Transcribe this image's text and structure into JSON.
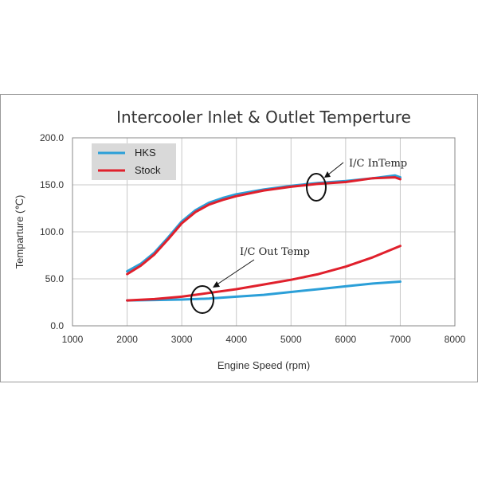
{
  "chart_data": {
    "type": "line",
    "title": "Intercooler Inlet & Outlet Temperture",
    "xlabel": "Engine Speed (rpm)",
    "ylabel": "Temparture (℃)",
    "xlim": [
      1000,
      8000
    ],
    "ylim": [
      0,
      200
    ],
    "x_ticks": [
      "1000",
      "2000",
      "3000",
      "4000",
      "5000",
      "6000",
      "7000",
      "8000"
    ],
    "y_ticks": [
      "0.0",
      "50.0",
      "100.0",
      "150.0",
      "200.0"
    ],
    "grid": true,
    "legend_position": "top-left",
    "series": [
      {
        "name": "HKS",
        "group": "inlet",
        "color": "#2b9fd8",
        "x": [
          2000,
          2250,
          2500,
          2750,
          3000,
          3250,
          3500,
          3750,
          4000,
          4500,
          5000,
          5500,
          6000,
          6500,
          6900,
          7000
        ],
        "y": [
          58,
          66,
          78,
          94,
          111,
          123,
          131,
          136,
          140,
          145,
          149,
          152,
          154,
          157,
          160,
          158
        ]
      },
      {
        "name": "Stock",
        "group": "inlet",
        "color": "#e0202c",
        "x": [
          2000,
          2250,
          2500,
          2750,
          3000,
          3250,
          3500,
          3750,
          4000,
          4500,
          5000,
          5500,
          6000,
          6500,
          6900,
          7000
        ],
        "y": [
          55,
          64,
          76,
          92,
          109,
          121,
          129,
          134,
          138,
          144,
          148,
          151,
          153,
          157,
          158,
          156
        ]
      },
      {
        "name": "HKS",
        "group": "outlet",
        "color": "#2b9fd8",
        "x": [
          2000,
          2500,
          3000,
          3500,
          4000,
          4500,
          5000,
          5500,
          6000,
          6500,
          7000
        ],
        "y": [
          27,
          27.5,
          28,
          29,
          31,
          33,
          36,
          39,
          42,
          45,
          47
        ]
      },
      {
        "name": "Stock",
        "group": "outlet",
        "color": "#e0202c",
        "x": [
          2000,
          2500,
          3000,
          3500,
          4000,
          4500,
          5000,
          5500,
          6000,
          6500,
          7000
        ],
        "y": [
          27,
          28.5,
          31,
          35,
          39,
          44,
          49,
          55,
          63,
          73,
          85
        ]
      }
    ],
    "annotations": [
      {
        "text": "I/C InTemp",
        "target": [
          5450,
          149
        ]
      },
      {
        "text": "I/C Out Temp",
        "target": [
          3350,
          28
        ]
      }
    ]
  }
}
